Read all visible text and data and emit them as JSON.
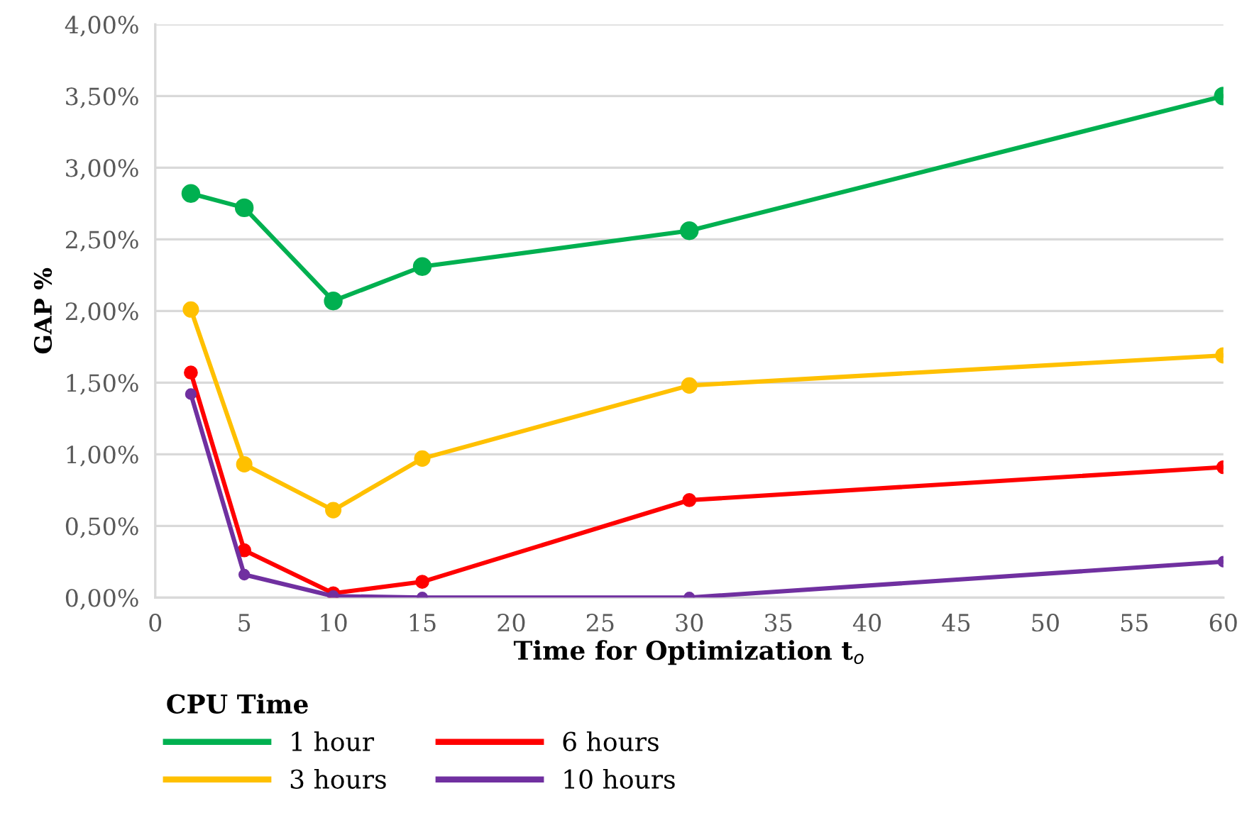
{
  "chart_data": {
    "type": "line",
    "xlabel": "Time for Optimization t$_{o}$",
    "ylabel": "GAP %",
    "legend_title": "CPU Time",
    "x": [
      2,
      5,
      10,
      15,
      30,
      60
    ],
    "series": [
      {
        "name": "1 hour",
        "color": "#00b050",
        "values": [
          2.82,
          2.72,
          2.07,
          2.31,
          2.56,
          3.5
        ]
      },
      {
        "name": "3 hours",
        "color": "#ffc000",
        "values": [
          2.01,
          0.93,
          0.61,
          0.97,
          1.48,
          1.69
        ]
      },
      {
        "name": "6 hours",
        "color": "#ff0000",
        "values": [
          1.57,
          0.33,
          0.03,
          0.11,
          0.68,
          0.91
        ]
      },
      {
        "name": "10 hours",
        "color": "#7030a0",
        "values": [
          1.42,
          0.16,
          0.01,
          0.0,
          0.0,
          0.25
        ]
      }
    ],
    "xlim": [
      0,
      60
    ],
    "xticks": [
      0,
      5,
      10,
      15,
      20,
      25,
      30,
      35,
      40,
      45,
      50,
      55,
      60
    ],
    "ylim": [
      0,
      4
    ],
    "yticks": [
      {
        "value": 0,
        "label": "0,00%"
      },
      {
        "value": 0.5,
        "label": "0,50%"
      },
      {
        "value": 1,
        "label": "1,00%"
      },
      {
        "value": 1.5,
        "label": "1,50%"
      },
      {
        "value": 2,
        "label": "2,00%"
      },
      {
        "value": 2.5,
        "label": "2,50%"
      },
      {
        "value": 3,
        "label": "3,00%"
      },
      {
        "value": 3.5,
        "label": "3,50%"
      },
      {
        "value": 4,
        "label": "4,00%"
      }
    ],
    "grid": "y",
    "legend": "bottom",
    "marker": "circle",
    "line_style": "solid"
  }
}
